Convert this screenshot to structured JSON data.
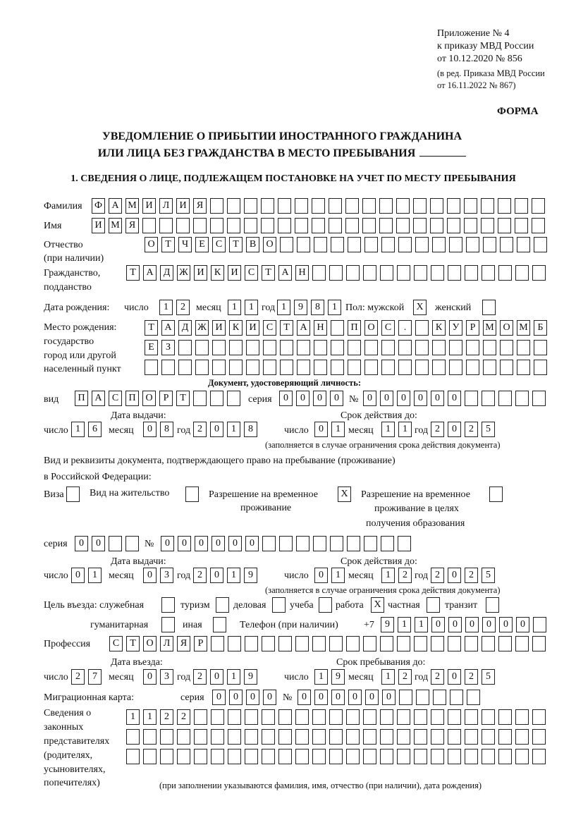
{
  "header": {
    "appendix": "Приложение № 4",
    "order": "к приказу МВД России",
    "order_date": "от 10.12.2020 № 856",
    "revision1": "(в ред. Приказа МВД России",
    "revision2": "от 16.11.2022 № 867)"
  },
  "form_label": "ФОРМА",
  "title": {
    "line1": "УВЕДОМЛЕНИЕ О ПРИБЫТИИ ИНОСТРАННОГО ГРАЖДАНИНА",
    "line2": "ИЛИ ЛИЦА БЕЗ ГРАЖДАНСТВА В МЕСТО ПРЕБЫВАНИЯ"
  },
  "section1_heading": "1. СВЕДЕНИЯ О ЛИЦЕ, ПОДЛЕЖАЩЕМ ПОСТАНОВКЕ НА УЧЕТ ПО МЕСТУ ПРЕБЫВАНИЯ",
  "labels": {
    "surname": "Фамилия",
    "name": "Имя",
    "patronymic1": "Отчество",
    "patronymic2": "(при наличии)",
    "citizenship1": "Гражданство,",
    "citizenship2": "подданство",
    "birth_date": "Дата рождения:",
    "day": "число",
    "month": "месяц",
    "year": "год",
    "sex_male": "Пол: мужской",
    "sex_female": "женский",
    "birthplace1": "Место рождения:",
    "birthplace2": "государство",
    "birthplace3": "город или другой",
    "birthplace4": "населенный пункт",
    "id_doc": "Документ, удостоверяющий личность:",
    "kind": "вид",
    "series": "серия",
    "number": "№",
    "issue_date": "Дата выдачи:",
    "valid_until": "Срок действия до:",
    "valid_note": "(заполняется в случае ограничения срока действия документа)",
    "right_doc1": "Вид и реквизиты документа, подтверждающего право на пребывание (проживание)",
    "right_doc2": "в Российской Федерации:",
    "visa": "Виза",
    "residence": "Вид на жительство",
    "temp_res1": "Разрешение на временное",
    "temp_res2": "проживание",
    "temp_edu1": "Разрешение на временное",
    "temp_edu2": "проживание в целях",
    "temp_edu3": "получения образования",
    "purpose": "Цель въезда: служебная",
    "tourism": "туризм",
    "business": "деловая",
    "study": "учеба",
    "work": "работа",
    "private": "частная",
    "transit": "транзит",
    "humanitarian": "гуманитарная",
    "other": "иная",
    "phone": "Телефон (при наличии)",
    "phone_prefix": "+7",
    "profession": "Профессия",
    "entry_date": "Дата въезда:",
    "stay_until": "Срок пребывания до:",
    "migration_card": "Миграционная карта:",
    "reps1": "Сведения о",
    "reps2": "законных",
    "reps3": "представителях",
    "reps4": "(родителях,",
    "reps5": "усыновителях,",
    "reps6": "попечителях)",
    "reps_note": "(при заполнении указываются фамилия, имя, отчество (при наличии), дата рождения)"
  },
  "fields": {
    "surname": "ФАМИЛИЯ",
    "name": "ИМЯ",
    "patronymic": "ОТЧЕСТВО",
    "citizenship": "ТАДЖИКИСТАН",
    "birth_day": "12",
    "birth_month": "11",
    "birth_year": "1981",
    "sex_male": "X",
    "sex_female": "",
    "birthplace_1": "ТАДЖИКИСТАН ПОС. КУРМОМБ",
    "birthplace_2": "ЕЗ",
    "birthplace_3": "",
    "id_kind": "ПАСПОРТ",
    "id_series": "0000",
    "id_number": "000000",
    "id_issue_day": "16",
    "id_issue_month": "08",
    "id_issue_year": "2018",
    "id_valid_day": "01",
    "id_valid_month": "11",
    "id_valid_year": "2025",
    "visa": "",
    "residence": "",
    "temp_res": "X",
    "temp_edu": "",
    "rd_series": "00",
    "rd_number": "000000",
    "rd_issue_day": "01",
    "rd_issue_month": "03",
    "rd_issue_year": "2019",
    "rd_valid_day": "01",
    "rd_valid_month": "12",
    "rd_valid_year": "2025",
    "p_official": "",
    "p_tourism": "",
    "p_business": "",
    "p_study": "",
    "p_work": "X",
    "p_private": "",
    "p_transit": "",
    "p_humanitarian": "",
    "p_other": "",
    "phone": "911000000",
    "profession": "СТОЛЯР",
    "entry_day": "27",
    "entry_month": "03",
    "entry_year": "2019",
    "stay_day": "19",
    "stay_month": "12",
    "stay_year": "2025",
    "mc_series": "0000",
    "mc_number": "000000",
    "reps_1": "1122",
    "reps_2": "",
    "reps_3": ""
  }
}
